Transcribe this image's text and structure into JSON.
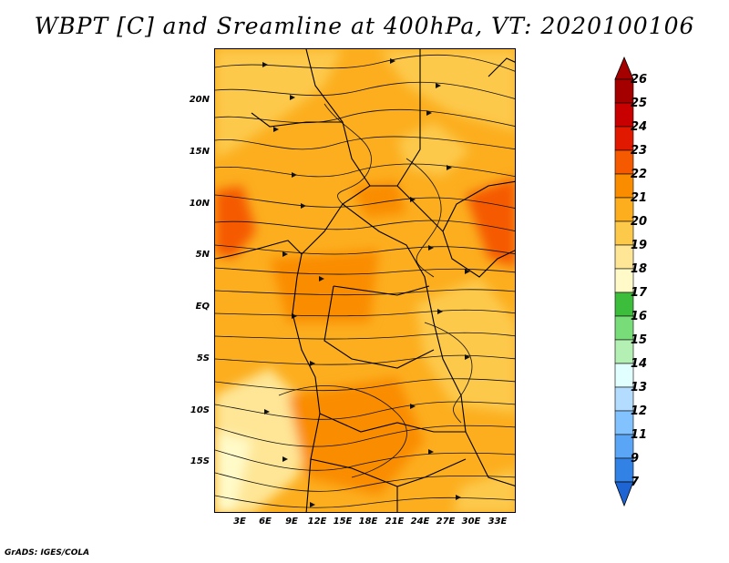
{
  "title": "WBPT [C] and Sreamline at 400hPa, VT: 2020100106",
  "footer": "GrADS: IGES/COLA",
  "map": {
    "region": "Central and Southern Africa",
    "variable": "Wet-bulb potential temperature",
    "units": "C",
    "level": "400hPa",
    "valid_time": "2020100106",
    "lat_labels": [
      "20N",
      "15N",
      "10N",
      "5N",
      "EQ",
      "5S",
      "10S",
      "15S"
    ],
    "lon_labels": [
      "3E",
      "6E",
      "9E",
      "12E",
      "15E",
      "18E",
      "21E",
      "24E",
      "27E",
      "30E",
      "33E"
    ]
  },
  "colorbar": {
    "labels": [
      "26",
      "25",
      "24",
      "23",
      "22",
      "21",
      "20",
      "19",
      "18",
      "17",
      "16",
      "15",
      "14",
      "13",
      "12",
      "11",
      "9",
      "7"
    ],
    "colors": [
      "#a50000",
      "#c80000",
      "#e11900",
      "#f55a00",
      "#fa8c00",
      "#fcae1e",
      "#fdc94b",
      "#fee696",
      "#fffac8",
      "#3cbe3c",
      "#78dc78",
      "#b4f0b4",
      "#e1ffff",
      "#b4dcff",
      "#82c3ff",
      "#5aa5f5",
      "#3282e6",
      "#1e64d2"
    ]
  }
}
